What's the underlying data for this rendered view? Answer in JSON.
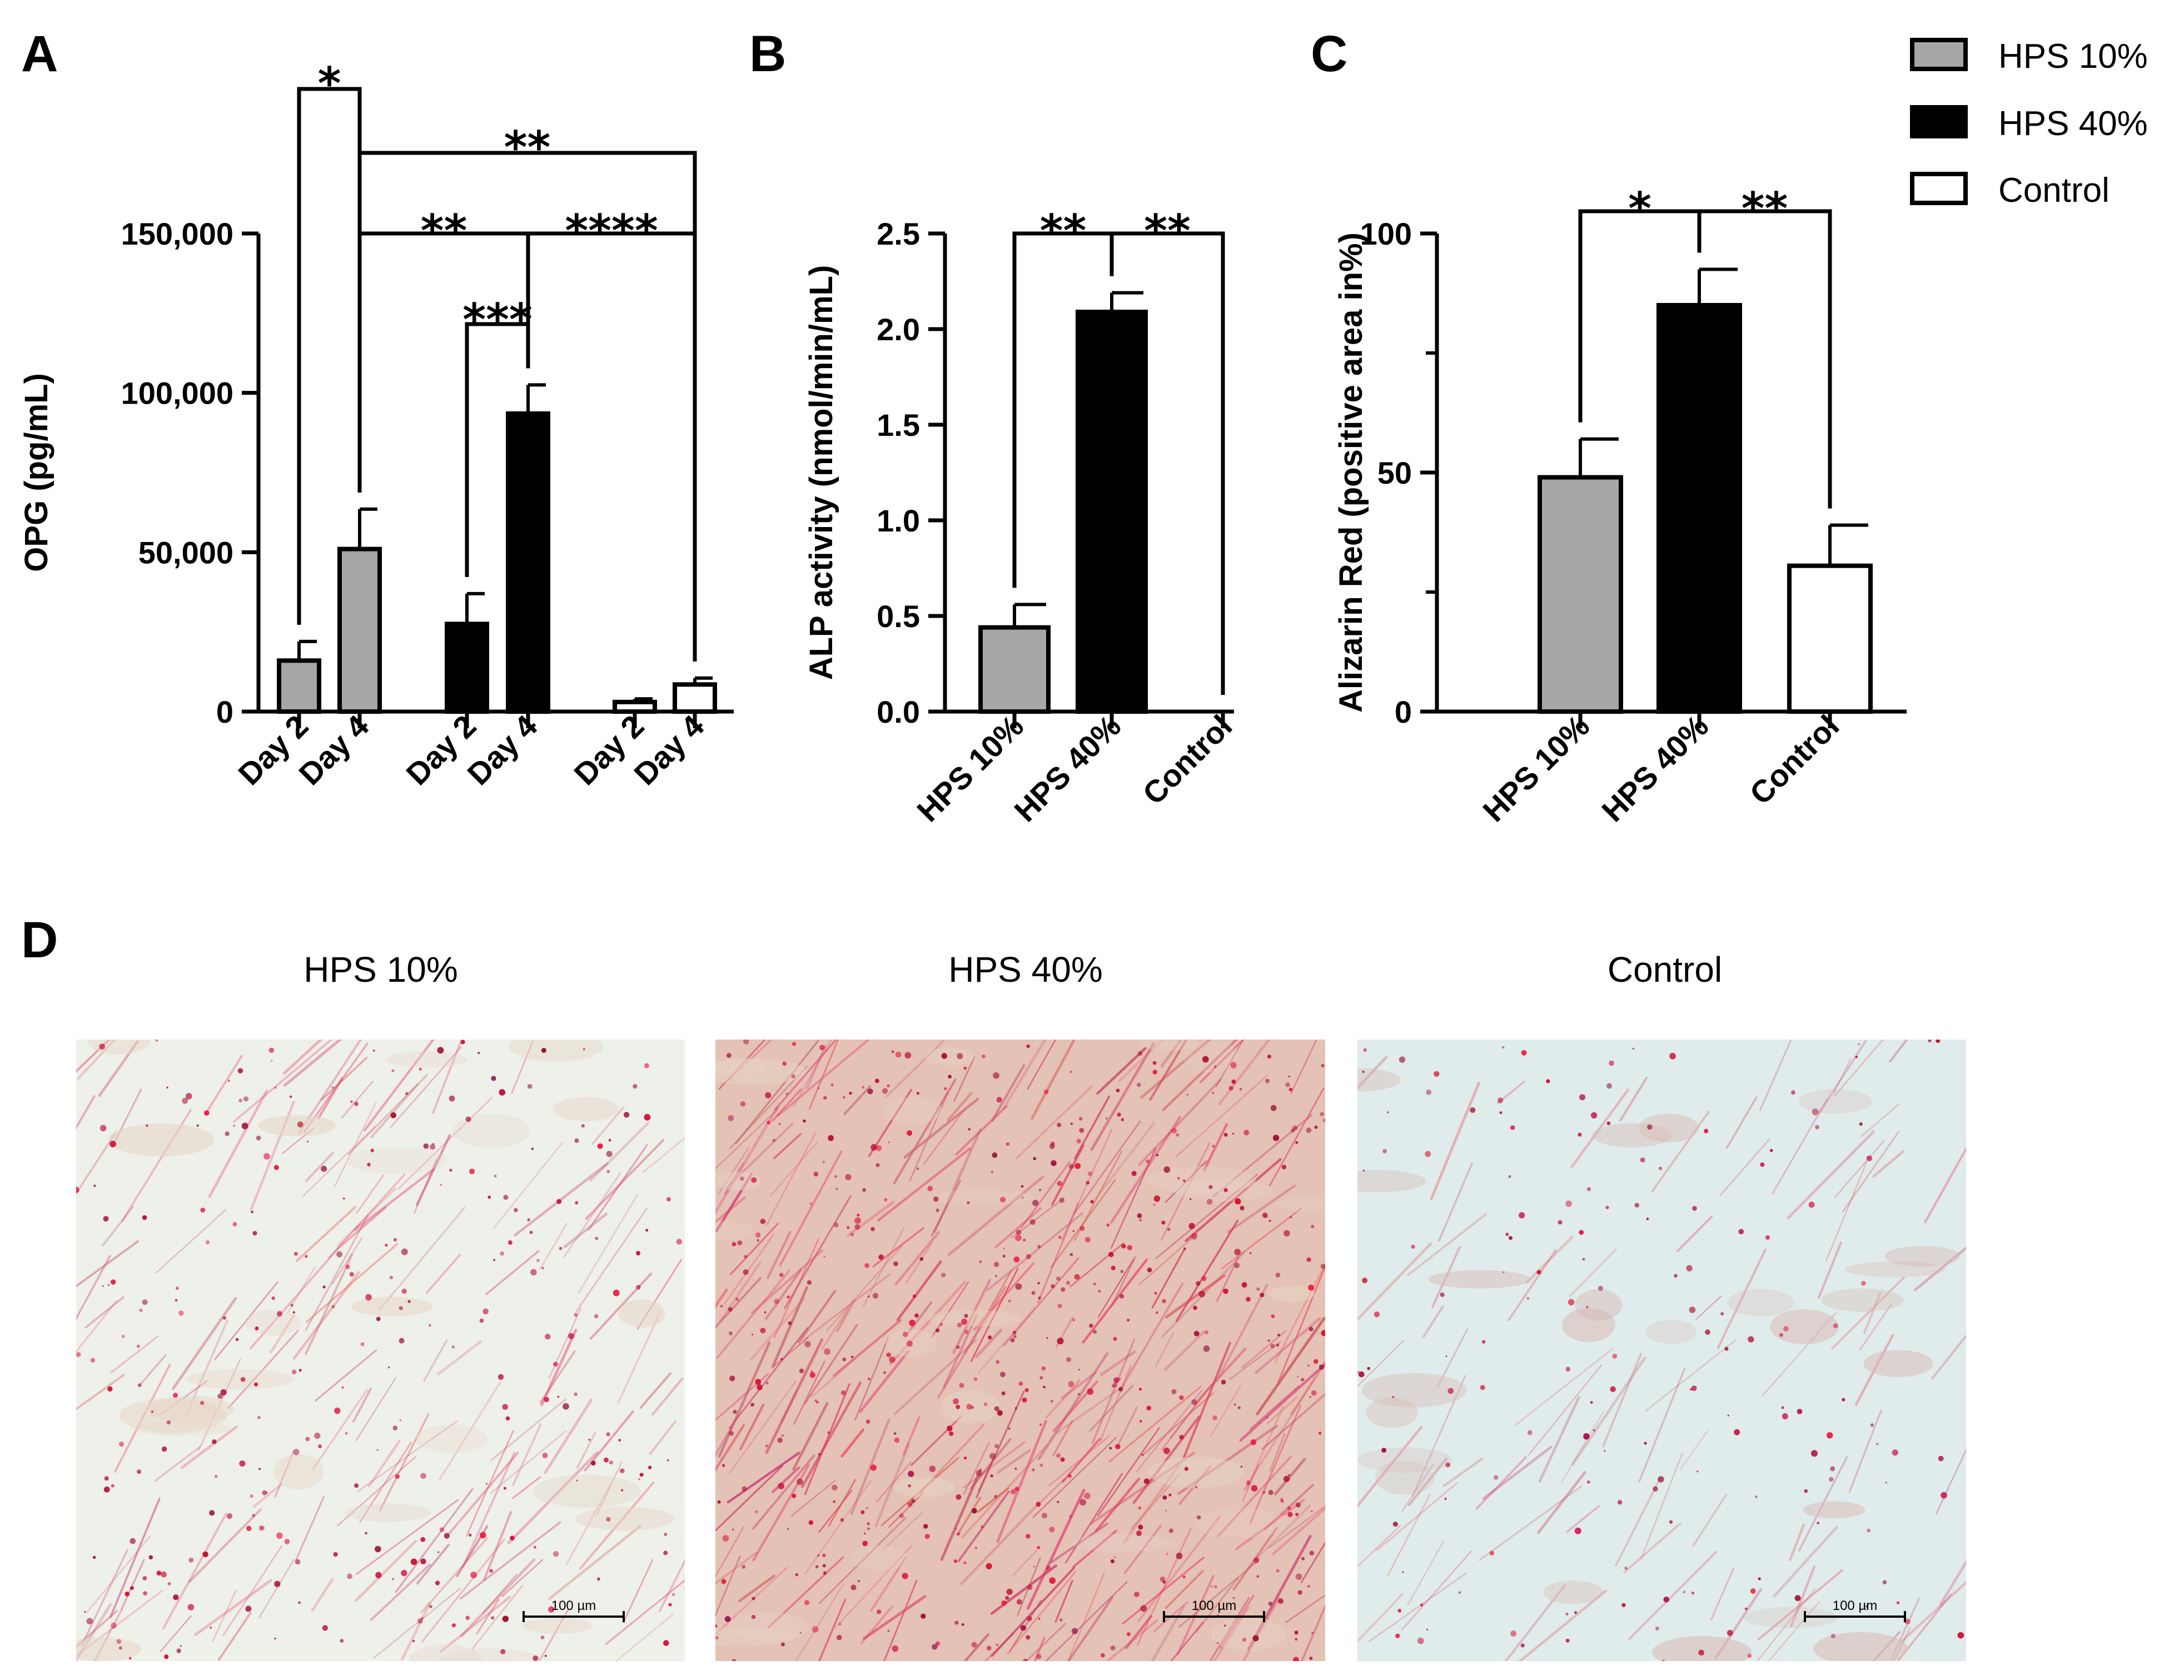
{
  "panel_labels": [
    "A",
    "B",
    "C",
    "D"
  ],
  "legend": [
    {
      "label": "HPS 10%",
      "color": "#a6a6a6"
    },
    {
      "label": "HPS 40%",
      "color": "#000000"
    },
    {
      "label": "Control",
      "color": "#ffffff"
    }
  ],
  "chart_data": [
    {
      "type": "bar",
      "panel": "A",
      "ylabel": "OPG (pg/mL)",
      "ylim": [
        0,
        150000
      ],
      "yticks": [
        "0",
        "50,000",
        "100,000",
        "150,000"
      ],
      "categories": [
        "Day 2",
        "Day 4",
        "Day 2",
        "Day 4",
        "Day 2",
        "Day 4"
      ],
      "groups": [
        "HPS 10%",
        "HPS 10%",
        "HPS 40%",
        "HPS 40%",
        "Control",
        "Control"
      ],
      "values": [
        16000,
        51000,
        27500,
        93500,
        3000,
        8500
      ],
      "errors": [
        6000,
        12500,
        9500,
        9000,
        1000,
        2000
      ],
      "significance": [
        {
          "from": 0,
          "to": 1,
          "label": "*"
        },
        {
          "from": 1,
          "to": 5,
          "label": "**"
        },
        {
          "from": 1,
          "to": 3,
          "label": "**"
        },
        {
          "from": 3,
          "to": 5,
          "label": "****"
        },
        {
          "from": 2,
          "to": 3,
          "label": "***"
        }
      ]
    },
    {
      "type": "bar",
      "panel": "B",
      "ylabel": "ALP activity (nmol/min/mL)",
      "ylim": [
        0,
        2.5
      ],
      "yticks": [
        "0.0",
        "0.5",
        "1.0",
        "1.5",
        "2.0",
        "2.5"
      ],
      "categories": [
        "HPS 10%",
        "HPS 40%",
        "Control"
      ],
      "values": [
        0.44,
        2.09,
        0
      ],
      "errors": [
        0.12,
        0.1,
        0
      ],
      "significance": [
        {
          "from": 0,
          "to": 1,
          "label": "**"
        },
        {
          "from": 1,
          "to": 2,
          "label": "**"
        }
      ]
    },
    {
      "type": "bar",
      "panel": "C",
      "ylabel": "Alizarin Red (positive area in%)",
      "ylim": [
        0,
        100
      ],
      "yticks": [
        "0",
        "50",
        "100"
      ],
      "categories": [
        "HPS 10%",
        "HPS 40%",
        "Control"
      ],
      "values": [
        49,
        85,
        30.5
      ],
      "errors": [
        8,
        7.5,
        8.5
      ],
      "significance": [
        {
          "from": 0,
          "to": 1,
          "label": "*"
        },
        {
          "from": 1,
          "to": 2,
          "label": "**"
        }
      ]
    }
  ],
  "micrographs": [
    {
      "title": "HPS 10%",
      "scale_bar": "100 µm",
      "background": "#eef0ea",
      "stain_density": 0.45
    },
    {
      "title": "HPS 40%",
      "scale_bar": "100 µm",
      "background": "#e4c2b6",
      "stain_density": 0.95
    },
    {
      "title": "Control",
      "scale_bar": "100 µm",
      "background": "#dfeceb",
      "stain_density": 0.2
    }
  ]
}
